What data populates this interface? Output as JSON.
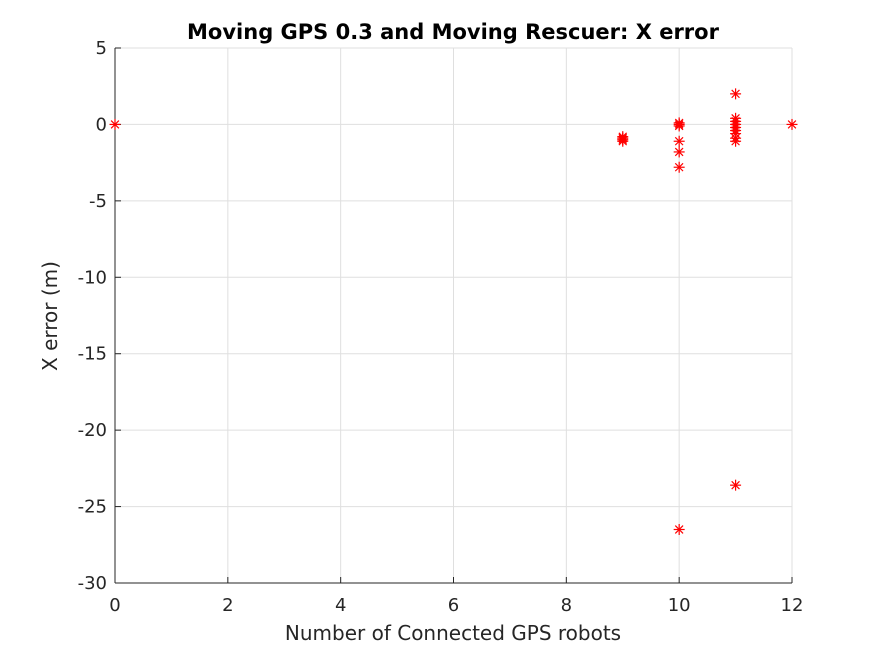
{
  "chart_data": {
    "type": "scatter",
    "title": "Moving GPS 0.3 and Moving Rescuer: X error",
    "xlabel": "Number of Connected GPS robots",
    "ylabel": "X error (m)",
    "xlim": [
      0,
      12
    ],
    "ylim": [
      -30,
      5
    ],
    "xticks": [
      0,
      2,
      4,
      6,
      8,
      10,
      12
    ],
    "yticks": [
      5,
      0,
      -5,
      -10,
      -15,
      -20,
      -25,
      -30
    ],
    "grid": true,
    "legend": "none",
    "marker": "asterisk",
    "color": "#ff0000",
    "series": [
      {
        "points": [
          [
            0,
            0
          ],
          [
            9,
            -0.8
          ],
          [
            9,
            -0.9
          ],
          [
            9,
            -1.0
          ],
          [
            9,
            -1.1
          ],
          [
            10,
            0.1
          ],
          [
            10,
            0.0
          ],
          [
            10,
            -0.1
          ],
          [
            10,
            -1.1
          ],
          [
            10,
            -1.8
          ],
          [
            10,
            -2.8
          ],
          [
            10,
            -26.5
          ],
          [
            11,
            2.0
          ],
          [
            11,
            0.4
          ],
          [
            11,
            0.2
          ],
          [
            11,
            0.0
          ],
          [
            11,
            -0.2
          ],
          [
            11,
            -0.4
          ],
          [
            11,
            -0.6
          ],
          [
            11,
            -0.9
          ],
          [
            11,
            -1.1
          ],
          [
            11,
            -23.6
          ],
          [
            12,
            0.0
          ]
        ]
      }
    ]
  }
}
